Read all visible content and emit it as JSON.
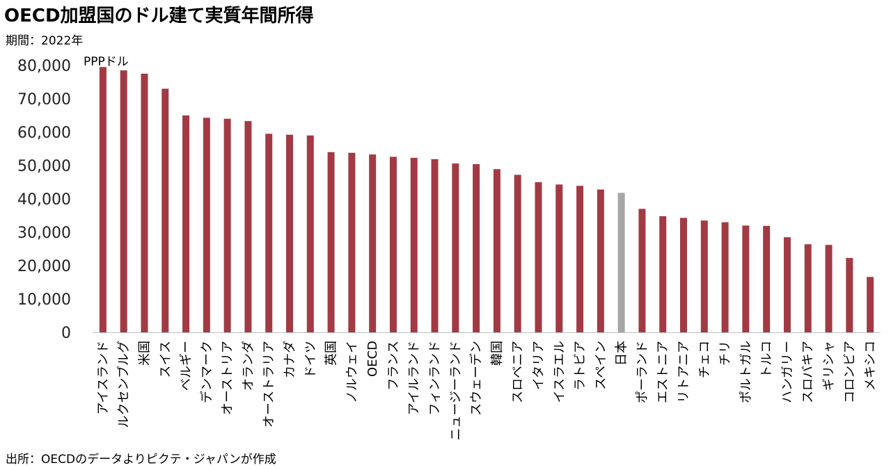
{
  "title": "OECD加盟国のドル建て実質年間所得",
  "subtitle": "期間：2022年",
  "source": "出所：OECDのデータよりピクテ・ジャパンが作成",
  "chart_data": {
    "type": "bar",
    "unit_label": "PPPドル",
    "ylim": [
      0,
      80000
    ],
    "yticks": [
      "0",
      "10,000",
      "20,000",
      "30,000",
      "40,000",
      "50,000",
      "60,000",
      "70,000",
      "80,000"
    ],
    "grid": false,
    "colors": {
      "default": "#A23A44",
      "highlight": "#A6A6A6"
    },
    "highlight": "日本",
    "categories": [
      "アイスランド",
      "ルクセンブルグ",
      "米国",
      "スイス",
      "ベルギー",
      "デンマーク",
      "オーストリア",
      "オランダ",
      "オーストラリア",
      "カナダ",
      "ドイツ",
      "英国",
      "ノルウェイ",
      "OECD",
      "フランス",
      "アイルランド",
      "フィンランド",
      "ニュージーランド",
      "スウェーデン",
      "韓国",
      "スロベニア",
      "イタリア",
      "イスラエル",
      "ラトビア",
      "スペイン",
      "日本",
      "ポーランド",
      "エストニア",
      "リトアニア",
      "チェコ",
      "チリ",
      "ポルトガル",
      "トルコ",
      "ハンガリー",
      "スロバキア",
      "ギリシャ",
      "コロンビア",
      "メキシコ"
    ],
    "values": [
      79500,
      78500,
      77500,
      73000,
      65000,
      64300,
      64000,
      63300,
      59500,
      59200,
      59000,
      54000,
      53800,
      53300,
      52600,
      52300,
      51900,
      50600,
      50400,
      48900,
      47200,
      45000,
      44300,
      43900,
      42800,
      41800,
      37000,
      34800,
      34300,
      33500,
      33000,
      32000,
      31900,
      28500,
      26400,
      26200,
      22300,
      16600
    ]
  }
}
